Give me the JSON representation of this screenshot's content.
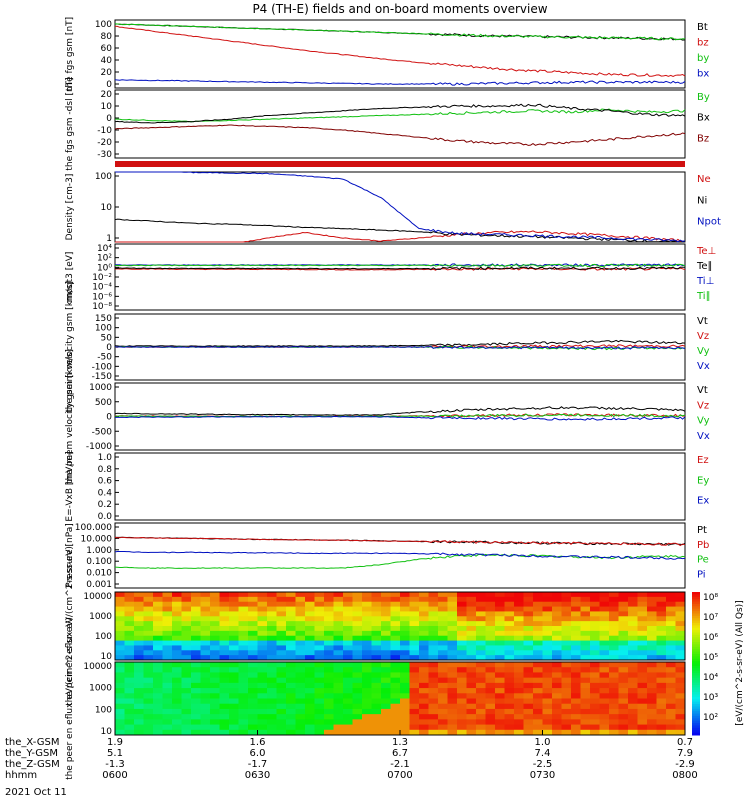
{
  "title": "P4 (TH-E) fields and on-board moments overview",
  "date_label": "2021 Oct 11",
  "colors": {
    "black": "#000000",
    "red": "#d01010",
    "green": "#10c010",
    "blue": "#0010c0",
    "darkred": "#800000"
  },
  "xaxis": {
    "rows": [
      {
        "label": "the_X-GSM",
        "values": [
          "1.9",
          "1.6",
          "1.3",
          "1.0",
          "0.7"
        ]
      },
      {
        "label": "the_Y-GSM",
        "values": [
          "5.1",
          "6.0",
          "6.7",
          "7.4",
          "7.9"
        ]
      },
      {
        "label": "the_Z-GSM",
        "values": [
          "-1.3",
          "-1.7",
          "-2.1",
          "-2.5",
          "-2.9"
        ]
      },
      {
        "label": "hhmm",
        "values": [
          "0600",
          "0630",
          "0700",
          "0730",
          "0800"
        ]
      }
    ]
  },
  "chart_data": [
    {
      "type": "line",
      "ylabel": "the fgs gsm [nT]",
      "yticks": [
        "100",
        "80",
        "60",
        "40",
        "20",
        "0"
      ],
      "series": [
        {
          "name": "Bt",
          "color": "black",
          "values": [
            100,
            98,
            96,
            94,
            92,
            90,
            88,
            86,
            84,
            82,
            80,
            79,
            78,
            77,
            76,
            75
          ]
        },
        {
          "name": "bz",
          "color": "red",
          "values": [
            96,
            88,
            80,
            72,
            64,
            56,
            49,
            42,
            36,
            31,
            26,
            22,
            19,
            16,
            15,
            14
          ]
        },
        {
          "name": "by",
          "color": "green",
          "values": [
            100,
            98,
            96,
            94,
            92,
            90,
            88,
            86,
            84,
            82,
            80,
            79,
            78,
            77,
            76,
            75
          ]
        },
        {
          "name": "bx",
          "color": "blue",
          "values": [
            7,
            6,
            5,
            4,
            3,
            2,
            1,
            0,
            0,
            0,
            1,
            2,
            3,
            3,
            3,
            3
          ]
        }
      ]
    },
    {
      "type": "line",
      "ylabel": "the fgs gsm -dsl [nT]",
      "yticks": [
        "20",
        "10",
        "0",
        "-10",
        "-20",
        "-30"
      ],
      "series": [
        {
          "name": "By",
          "color": "green",
          "values": [
            -1,
            -2,
            -3,
            -2,
            -1,
            0,
            1,
            2,
            3,
            4,
            5,
            6,
            5,
            7,
            5,
            6
          ]
        },
        {
          "name": "Bx",
          "color": "black",
          "values": [
            -3,
            -4,
            -3,
            -1,
            2,
            4,
            6,
            8,
            9,
            10,
            10,
            11,
            8,
            6,
            3,
            2
          ]
        },
        {
          "name": "Bz",
          "color": "darkred",
          "values": [
            -9,
            -8,
            -7,
            -6,
            -7,
            -8,
            -10,
            -13,
            -16,
            -19,
            -21,
            -22,
            -20,
            -18,
            -15,
            -13
          ]
        }
      ]
    },
    {
      "type": "line",
      "ylabel": "Density [cm-3]",
      "log": true,
      "yticks": [
        "100",
        "10",
        "1"
      ],
      "series": [
        {
          "name": "Ne",
          "color": "red",
          "values": [
            0.3,
            0.4,
            0.5,
            0.6,
            1,
            1.5,
            1,
            0.8,
            1,
            1.3,
            1.5,
            1.6,
            1.4,
            1.2,
            1,
            0.8
          ]
        },
        {
          "name": "Ni",
          "color": "black",
          "values": [
            4,
            3.5,
            3,
            2.8,
            2.5,
            2.2,
            2,
            1.8,
            1.6,
            1.3,
            1.2,
            1.1,
            1,
            0.9,
            0.8,
            0.7
          ]
        },
        {
          "name": "Npot",
          "color": "blue",
          "values": [
            250,
            150,
            130,
            125,
            120,
            100,
            80,
            20,
            2,
            1.4,
            1.3,
            1.2,
            1.1,
            1,
            0.9,
            0.8
          ]
        }
      ]
    },
    {
      "type": "line",
      "ylabel": "moqt3 [eV]",
      "log": true,
      "yticks": [
        "10⁴",
        "10²",
        "10⁰",
        "10⁻²",
        "10⁻⁴",
        "10⁻⁶",
        "10⁻⁸"
      ],
      "series": [
        {
          "name": "Te⊥",
          "color": "red",
          "values": [
            0.5,
            0.4,
            0.4,
            0.3,
            0.4,
            0.5,
            0.4,
            0.5
          ]
        },
        {
          "name": "Te∥",
          "color": "black",
          "values": [
            0.7,
            0.6,
            0.6,
            0.5,
            0.6,
            0.7,
            0.6,
            0.7
          ]
        },
        {
          "name": "Ti⊥",
          "color": "blue",
          "values": [
            3,
            3,
            3,
            3,
            3,
            3,
            3,
            3
          ]
        },
        {
          "name": "Ti∥",
          "color": "green",
          "values": [
            2.5,
            2.5,
            2.5,
            2.5,
            2.5,
            2.5,
            2.5,
            2.5
          ]
        }
      ]
    },
    {
      "type": "line",
      "ylabel": "the peim velocity gsm [km/s]",
      "yticks": [
        "150",
        "100",
        "50",
        "0",
        "-50",
        "-100",
        "-150"
      ],
      "series": [
        {
          "name": "Vt",
          "color": "black",
          "values": [
            5,
            5,
            5,
            5,
            5,
            5,
            5,
            6,
            8,
            10,
            15,
            20,
            25,
            30,
            25,
            20
          ]
        },
        {
          "name": "Vz",
          "color": "red",
          "values": [
            0,
            0,
            0,
            0,
            0,
            0,
            0,
            0,
            0,
            2,
            3,
            4,
            5,
            6,
            5,
            4
          ]
        },
        {
          "name": "Vy",
          "color": "green",
          "values": [
            0,
            0,
            0,
            0,
            0,
            0,
            0,
            0,
            0,
            -2,
            -3,
            -5,
            -6,
            -8,
            -6,
            -5
          ]
        },
        {
          "name": "Vx",
          "color": "blue",
          "values": [
            0,
            0,
            0,
            0,
            0,
            0,
            0,
            0,
            0,
            -1,
            -2,
            -3,
            -4,
            -5,
            -4,
            -3
          ]
        }
      ]
    },
    {
      "type": "line",
      "ylabel": "the peem velocity gsm [km/s]",
      "yticks": [
        "1000",
        "500",
        "0",
        "-500",
        "-1000"
      ],
      "series": [
        {
          "name": "Vt",
          "color": "black",
          "values": [
            100,
            90,
            80,
            70,
            60,
            60,
            50,
            60,
            150,
            200,
            250,
            280,
            300,
            280,
            250,
            200
          ]
        },
        {
          "name": "Vz",
          "color": "red",
          "values": [
            20,
            15,
            10,
            10,
            5,
            5,
            5,
            5,
            20,
            30,
            40,
            50,
            60,
            50,
            40,
            30
          ]
        },
        {
          "name": "Vy",
          "color": "green",
          "values": [
            10,
            10,
            5,
            5,
            5,
            5,
            5,
            5,
            10,
            20,
            30,
            40,
            50,
            40,
            30,
            20
          ]
        },
        {
          "name": "Vx",
          "color": "blue",
          "values": [
            -30,
            -20,
            -15,
            -10,
            -10,
            -10,
            -5,
            -10,
            -40,
            -50,
            -60,
            -80,
            -100,
            -80,
            -60,
            -50
          ]
        }
      ]
    },
    {
      "type": "line",
      "ylabel": "E=-VxB [mV/m]",
      "yticks": [
        "1.0",
        "0.8",
        "0.6",
        "0.4",
        "0.2",
        "0.0"
      ],
      "series": [
        {
          "name": "Ez",
          "color": "red",
          "values": []
        },
        {
          "name": "Ey",
          "color": "green",
          "values": []
        },
        {
          "name": "Ex",
          "color": "blue",
          "values": []
        }
      ]
    },
    {
      "type": "line",
      "ylabel": "Pressure [nPa]",
      "log": true,
      "yticks": [
        "100.000",
        "10.000",
        "1.000",
        "0.100",
        "0.010",
        "0.001"
      ],
      "series": [
        {
          "name": "Pt",
          "color": "black",
          "values": [
            12,
            11,
            10,
            9,
            8,
            7.5,
            7,
            6,
            5.5,
            5,
            4.5,
            4,
            3.7,
            3.5,
            3.2,
            3
          ]
        },
        {
          "name": "Pb",
          "color": "red",
          "values": [
            12,
            11,
            10,
            9,
            8,
            7.5,
            7,
            6,
            5.5,
            5,
            4.5,
            4,
            3.7,
            3.5,
            3.2,
            3
          ]
        },
        {
          "name": "Pe",
          "color": "green",
          "values": [
            0.03,
            0.025,
            0.025,
            0.025,
            0.025,
            0.025,
            0.025,
            0.05,
            0.15,
            0.3,
            0.35,
            0.3,
            0.25,
            0.2,
            0.25,
            0.28
          ]
        },
        {
          "name": "Pi",
          "color": "blue",
          "values": [
            0.7,
            0.6,
            0.6,
            0.55,
            0.55,
            0.5,
            0.5,
            0.5,
            0.45,
            0.4,
            0.35,
            0.3,
            0.25,
            0.22,
            0.2,
            0.18
          ]
        }
      ]
    },
    {
      "type": "heatmap",
      "ylabel": "the peir en eflux eV/(cm^2-s-sr-eV)",
      "log": true,
      "yticks": [
        "10000",
        "1000",
        "100",
        "10"
      ]
    },
    {
      "type": "heatmap",
      "ylabel": "the peer en eflux eV/(cm^2-s-sr-eV)",
      "log": true,
      "yticks": [
        "10000",
        "1000",
        "100",
        "10"
      ]
    }
  ],
  "colorbar": {
    "ticks": [
      "10⁸",
      "10⁷",
      "10⁶",
      "10⁵",
      "10⁴",
      "10³",
      "10²"
    ],
    "label": "[eV/(cm^2-s-sr-eV) (All Qs)]"
  }
}
